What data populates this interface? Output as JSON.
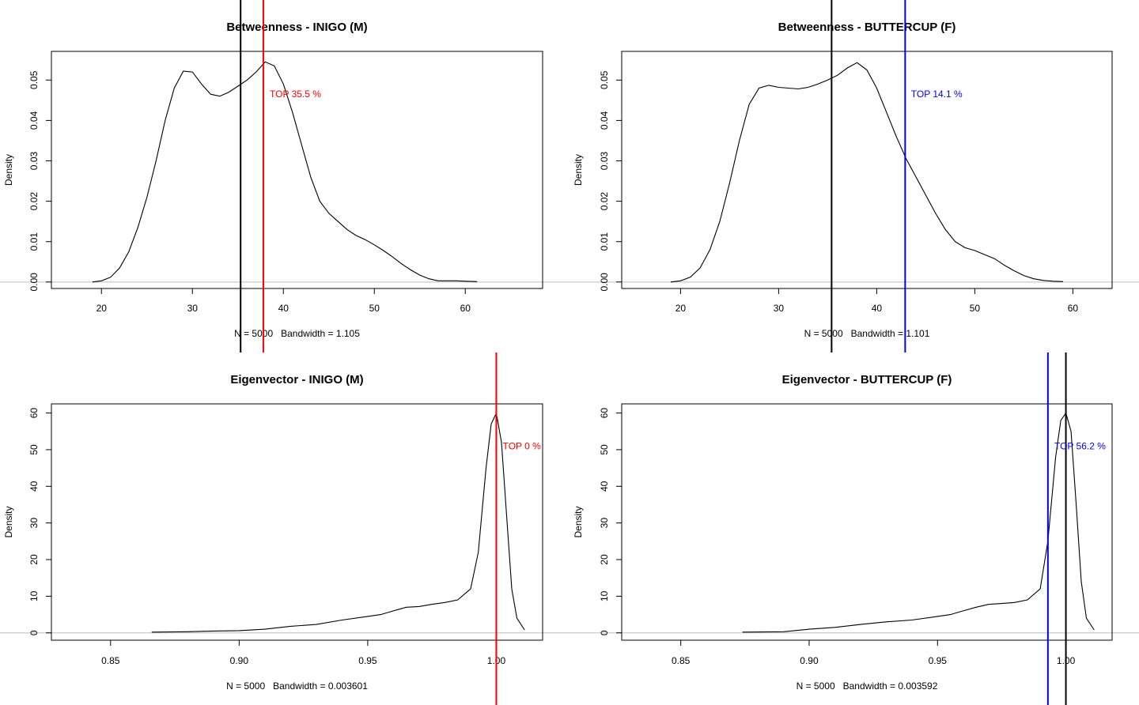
{
  "chart_data": [
    {
      "type": "line",
      "title": "Betweenness - INIGO (M)",
      "xlabel": "N = 5000   Bandwidth = 1.105",
      "ylabel": "Density",
      "xlim": [
        14.5,
        68.5
      ],
      "ylim": [
        -0.0016,
        0.0571
      ],
      "xticks": [
        20,
        30,
        40,
        50,
        60
      ],
      "xtick_labels": [
        "20",
        "30",
        "40",
        "50",
        "60"
      ],
      "yticks": [
        0,
        0.01,
        0.02,
        0.03,
        0.04,
        0.05
      ],
      "ytick_labels": [
        "0.00",
        "0.01",
        "0.02",
        "0.03",
        "0.04",
        "0.05"
      ],
      "x": [
        19,
        20,
        21,
        22,
        23,
        24,
        25,
        26,
        27,
        28,
        29,
        30,
        31,
        32,
        33,
        34,
        35,
        36,
        37,
        38,
        39,
        40,
        41,
        42,
        43,
        44,
        45,
        46,
        47,
        48,
        49,
        50,
        51,
        52,
        53,
        54,
        55,
        56,
        57,
        58,
        59,
        60,
        61.3
      ],
      "y": [
        0.0,
        0.0003,
        0.0012,
        0.0035,
        0.0075,
        0.0135,
        0.021,
        0.03,
        0.04,
        0.048,
        0.0522,
        0.052,
        0.049,
        0.0465,
        0.046,
        0.047,
        0.0485,
        0.05,
        0.052,
        0.0545,
        0.0535,
        0.049,
        0.042,
        0.034,
        0.026,
        0.02,
        0.017,
        0.015,
        0.013,
        0.0115,
        0.0105,
        0.0092,
        0.0078,
        0.0062,
        0.0045,
        0.003,
        0.0017,
        0.0008,
        0.0003,
        0.0003,
        0.0003,
        0.0002,
        0.0001
      ],
      "observed_line": {
        "x": 35.3,
        "color": "#000000"
      },
      "rank_line": {
        "x": 37.8,
        "color": "#ff0000"
      },
      "annotation": {
        "text": "TOP 35.5 %",
        "x": 38.5,
        "y": 0.0465,
        "color": "#ff0000"
      },
      "zero_line_color": "#bebebe"
    },
    {
      "type": "line",
      "title": "Betweenness - BUTTERCUP (F)",
      "xlabel": "N = 5000   Bandwidth = 1.101",
      "ylabel": "Density",
      "xlim": [
        14.0,
        64.0
      ],
      "ylim": [
        -0.0016,
        0.0571
      ],
      "xticks": [
        20,
        30,
        40,
        50,
        60
      ],
      "xtick_labels": [
        "20",
        "30",
        "40",
        "50",
        "60"
      ],
      "yticks": [
        0,
        0.01,
        0.02,
        0.03,
        0.04,
        0.05
      ],
      "ytick_labels": [
        "0.00",
        "0.01",
        "0.02",
        "0.03",
        "0.04",
        "0.05"
      ],
      "x": [
        19,
        20,
        21,
        22,
        23,
        24,
        25,
        26,
        27,
        28,
        29,
        30,
        31,
        32,
        33,
        34,
        35,
        36,
        37,
        38,
        39,
        40,
        41,
        42,
        43,
        44,
        45,
        46,
        47,
        48,
        49,
        50,
        51,
        52,
        53,
        54,
        55,
        56,
        57,
        58,
        59
      ],
      "y": [
        0.0,
        0.0003,
        0.0012,
        0.0035,
        0.008,
        0.015,
        0.0245,
        0.035,
        0.044,
        0.048,
        0.0487,
        0.0482,
        0.048,
        0.0478,
        0.0482,
        0.049,
        0.05,
        0.0512,
        0.053,
        0.0543,
        0.0525,
        0.048,
        0.042,
        0.036,
        0.0305,
        0.026,
        0.0215,
        0.017,
        0.013,
        0.01,
        0.0085,
        0.0078,
        0.0068,
        0.0058,
        0.0042,
        0.0028,
        0.0016,
        0.0008,
        0.0004,
        0.0002,
        0.0001
      ],
      "observed_line": {
        "x": 35.4,
        "color": "#000000"
      },
      "rank_line": {
        "x": 42.9,
        "color": "#0000ff"
      },
      "annotation": {
        "text": "TOP 14.1 %",
        "x": 43.5,
        "y": 0.0465,
        "color": "#0000ff"
      },
      "zero_line_color": "#bebebe"
    },
    {
      "type": "line",
      "title": "Eigenvector - INIGO (M)",
      "xlabel": "N = 5000   Bandwidth = 0.003601",
      "ylabel": "Density",
      "xlim": [
        0.827,
        1.018
      ],
      "ylim": [
        -2.0,
        62.5
      ],
      "xticks": [
        0.85,
        0.9,
        0.95,
        1.0
      ],
      "xtick_labels": [
        "0.85",
        "0.90",
        "0.95",
        "1.00"
      ],
      "yticks": [
        0,
        10,
        20,
        30,
        40,
        50,
        60
      ],
      "ytick_labels": [
        "0",
        "10",
        "20",
        "30",
        "40",
        "50",
        "60"
      ],
      "x": [
        0.866,
        0.88,
        0.89,
        0.9,
        0.91,
        0.92,
        0.93,
        0.94,
        0.95,
        0.955,
        0.96,
        0.965,
        0.97,
        0.975,
        0.98,
        0.985,
        0.99,
        0.993,
        0.996,
        0.998,
        1.0,
        1.002,
        1.004,
        1.006,
        1.008,
        1.011
      ],
      "y": [
        0.2,
        0.3,
        0.5,
        0.6,
        1.0,
        1.8,
        2.3,
        3.5,
        4.5,
        5.0,
        6.0,
        7.0,
        7.2,
        7.8,
        8.3,
        9.0,
        12.0,
        22.0,
        45.0,
        57.0,
        60.0,
        52.0,
        32.0,
        12.0,
        4.0,
        0.8
      ],
      "observed_line": {
        "x": 1.0,
        "color": "#000000"
      },
      "rank_line": {
        "x": 1.0,
        "color": "#ff0000"
      },
      "annotation": {
        "text": "TOP 0 %",
        "x": 1.0025,
        "y": 51,
        "color": "#ff0000"
      },
      "zero_line_color": "#bebebe"
    },
    {
      "type": "line",
      "title": "Eigenvector - BUTTERCUP (F)",
      "xlabel": "N = 5000   Bandwidth = 0.003592",
      "ylabel": "Density",
      "xlim": [
        0.827,
        1.018
      ],
      "ylim": [
        -2.0,
        62.5
      ],
      "xticks": [
        0.85,
        0.9,
        0.95,
        1.0
      ],
      "xtick_labels": [
        "0.85",
        "0.90",
        "0.95",
        "1.00"
      ],
      "yticks": [
        0,
        10,
        20,
        30,
        40,
        50,
        60
      ],
      "ytick_labels": [
        "0",
        "10",
        "20",
        "30",
        "40",
        "50",
        "60"
      ],
      "x": [
        0.874,
        0.89,
        0.9,
        0.91,
        0.92,
        0.93,
        0.94,
        0.95,
        0.955,
        0.96,
        0.965,
        0.97,
        0.975,
        0.98,
        0.985,
        0.99,
        0.993,
        0.996,
        0.998,
        1.0,
        1.002,
        1.004,
        1.006,
        1.008,
        1.011
      ],
      "y": [
        0.2,
        0.3,
        1.0,
        1.5,
        2.3,
        3.0,
        3.5,
        4.5,
        5.0,
        6.0,
        7.0,
        7.8,
        8.0,
        8.3,
        9.0,
        12.0,
        25.0,
        48.0,
        58.0,
        60.0,
        55.0,
        35.0,
        14.0,
        4.0,
        0.8
      ],
      "observed_line": {
        "x": 1.0,
        "color": "#000000"
      },
      "rank_line": {
        "x": 0.993,
        "color": "#0000ff"
      },
      "annotation": {
        "text": "TOP 56.2 %",
        "x": 0.9955,
        "y": 51,
        "color": "#0000ff"
      },
      "zero_line_color": "#bebebe"
    }
  ]
}
